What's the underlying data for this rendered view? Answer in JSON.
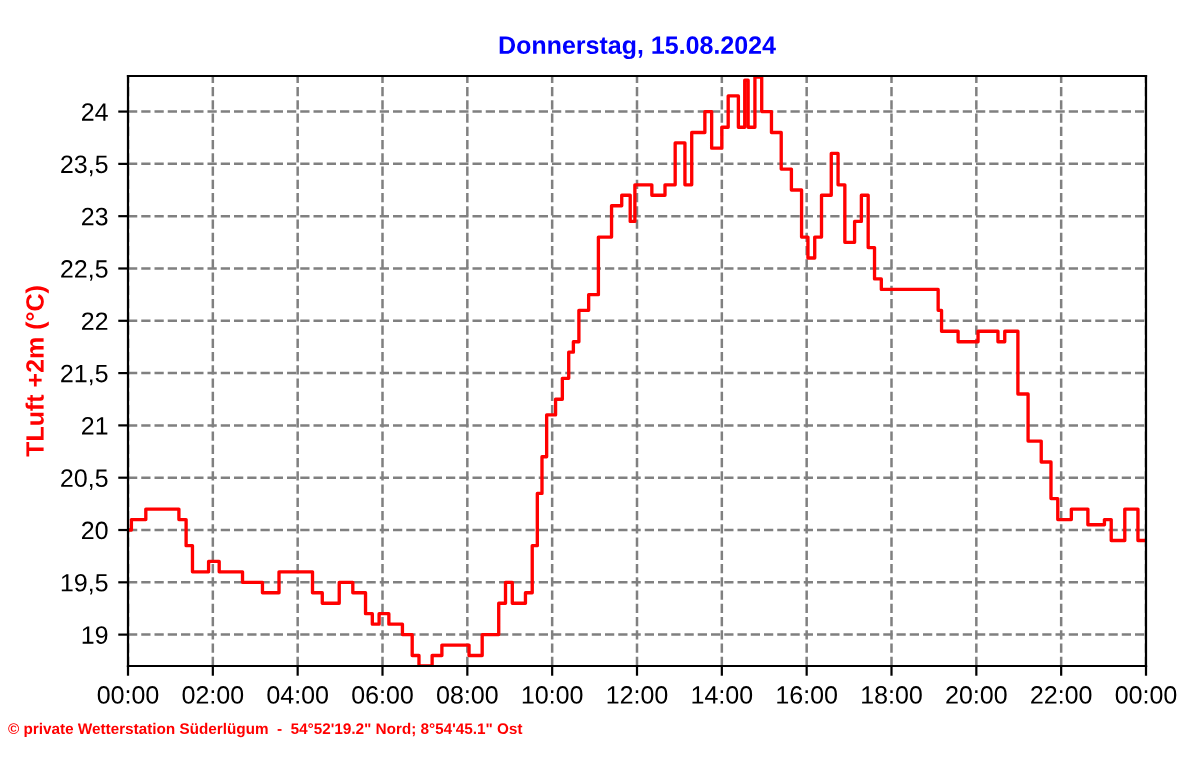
{
  "chart_data": {
    "type": "step",
    "title": "Donnerstag, 15.08.2024",
    "ylabel": "TLuft +2m (°C)",
    "annotations": [
      "© private Wetterstation Süderlügum  -  54°52'19.2\" Nord; 8°54'45.1\" Ost"
    ],
    "x": [
      0,
      0.08,
      0.42,
      1.2,
      1.37,
      1.52,
      1.9,
      2.15,
      2.7,
      3.17,
      3.56,
      4.1,
      4.35,
      4.58,
      4.98,
      5.3,
      5.6,
      5.76,
      5.92,
      6.15,
      6.47,
      6.7,
      6.86,
      7.17,
      7.4,
      8.04,
      8.35,
      8.74,
      8.9,
      9.06,
      9.37,
      9.53,
      9.65,
      9.76,
      9.87,
      10.08,
      10.24,
      10.39,
      10.5,
      10.63,
      10.86,
      11.09,
      11.4,
      11.64,
      11.84,
      11.95,
      12.35,
      12.66,
      12.9,
      13.13,
      13.29,
      13.6,
      13.76,
      14.0,
      14.15,
      14.39,
      14.54,
      14.62,
      14.78,
      14.94,
      15.17,
      15.4,
      15.64,
      15.88,
      16.03,
      16.19,
      16.35,
      16.58,
      16.74,
      16.9,
      17.13,
      17.29,
      17.45,
      17.6,
      17.76,
      18.47,
      19.1,
      19.18,
      19.57,
      20.04,
      20.51,
      20.67,
      20.98,
      21.22,
      21.53,
      21.76,
      21.92,
      22.24,
      22.63,
      23.02,
      23.18,
      23.5,
      23.81,
      23.96
    ],
    "series": [
      {
        "color": "#ff0000",
        "values": [
          20.0,
          20.1,
          20.2,
          20.1,
          19.85,
          19.6,
          19.7,
          19.6,
          19.5,
          19.4,
          19.6,
          19.6,
          19.4,
          19.3,
          19.5,
          19.4,
          19.2,
          19.1,
          19.2,
          19.1,
          19.0,
          18.8,
          18.7,
          18.8,
          18.9,
          18.8,
          19.0,
          19.3,
          19.5,
          19.3,
          19.4,
          19.85,
          20.35,
          20.7,
          21.1,
          21.25,
          21.45,
          21.7,
          21.8,
          22.1,
          22.25,
          22.8,
          23.1,
          23.2,
          22.95,
          23.3,
          23.2,
          23.3,
          23.7,
          23.3,
          23.8,
          24.0,
          23.65,
          23.85,
          24.15,
          23.85,
          24.3,
          23.85,
          24.33,
          24.0,
          23.8,
          23.45,
          23.25,
          22.8,
          22.6,
          22.8,
          23.2,
          23.6,
          23.3,
          22.75,
          22.95,
          23.2,
          22.7,
          22.4,
          22.3,
          22.3,
          22.1,
          21.9,
          21.8,
          21.9,
          21.8,
          21.9,
          21.3,
          20.85,
          20.65,
          20.3,
          20.1,
          20.2,
          20.05,
          20.1,
          19.9,
          20.2,
          19.9,
          19.9
        ]
      }
    ],
    "xlim": [
      0,
      24
    ],
    "xticks": [
      {
        "value": 0,
        "label": "00:00"
      },
      {
        "value": 2,
        "label": "02:00"
      },
      {
        "value": 4,
        "label": "04:00"
      },
      {
        "value": 6,
        "label": "06:00"
      },
      {
        "value": 8,
        "label": "08:00"
      },
      {
        "value": 10,
        "label": "10:00"
      },
      {
        "value": 12,
        "label": "12:00"
      },
      {
        "value": 14,
        "label": "14:00"
      },
      {
        "value": 16,
        "label": "16:00"
      },
      {
        "value": 18,
        "label": "18:00"
      },
      {
        "value": 20,
        "label": "20:00"
      },
      {
        "value": 22,
        "label": "22:00"
      },
      {
        "value": 24,
        "label": "00:00"
      }
    ],
    "ylim": [
      18.7,
      24.34
    ],
    "yticks": [
      19,
      {
        "value": 19.5,
        "label": "19,5"
      },
      20,
      {
        "value": 20.5,
        "label": "20,5"
      },
      21,
      {
        "value": 21.5,
        "label": "21,5"
      },
      22,
      {
        "value": 22.5,
        "label": "22,5"
      },
      23,
      {
        "value": 23.5,
        "label": "23,5"
      },
      24
    ],
    "grid": true,
    "line_style": "solid",
    "marker": "none"
  }
}
